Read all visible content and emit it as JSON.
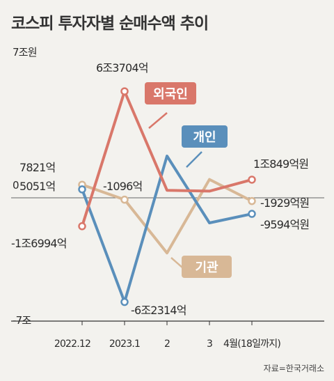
{
  "title": "코스피 투자자별 순매수액 추이",
  "source": "자료=한국거래소",
  "chart_data": {
    "type": "line",
    "categories": [
      "2022.12",
      "2023.1",
      "2",
      "3",
      "4월(18일까지)"
    ],
    "y_unit_labels": {
      "top": "7조원",
      "zero": "0",
      "bottom": "-7조"
    },
    "ylim": [
      -7,
      7
    ],
    "grid": false,
    "series": [
      {
        "name": "외국인",
        "color": "#d9776a",
        "values": [
          -1.6994,
          6.3704,
          0.45,
          0.4,
          1.0849
        ],
        "start_label": "-1조6994억",
        "peak_label": "6조3704억",
        "end_label": "1조849억원"
      },
      {
        "name": "개인",
        "color": "#5a8fbb",
        "values": [
          0.5051,
          -6.2314,
          2.5,
          -1.5,
          -0.9594
        ],
        "start_label": "5051억",
        "trough_label": "-6조2314억",
        "end_label": "-9594억원"
      },
      {
        "name": "기관",
        "color": "#d8b896",
        "values": [
          0.7821,
          -0.1096,
          -3.3,
          1.1,
          -0.1929
        ],
        "start_label": "7821억",
        "mid_label": "-1096억",
        "end_label": "-1929억원"
      }
    ]
  }
}
